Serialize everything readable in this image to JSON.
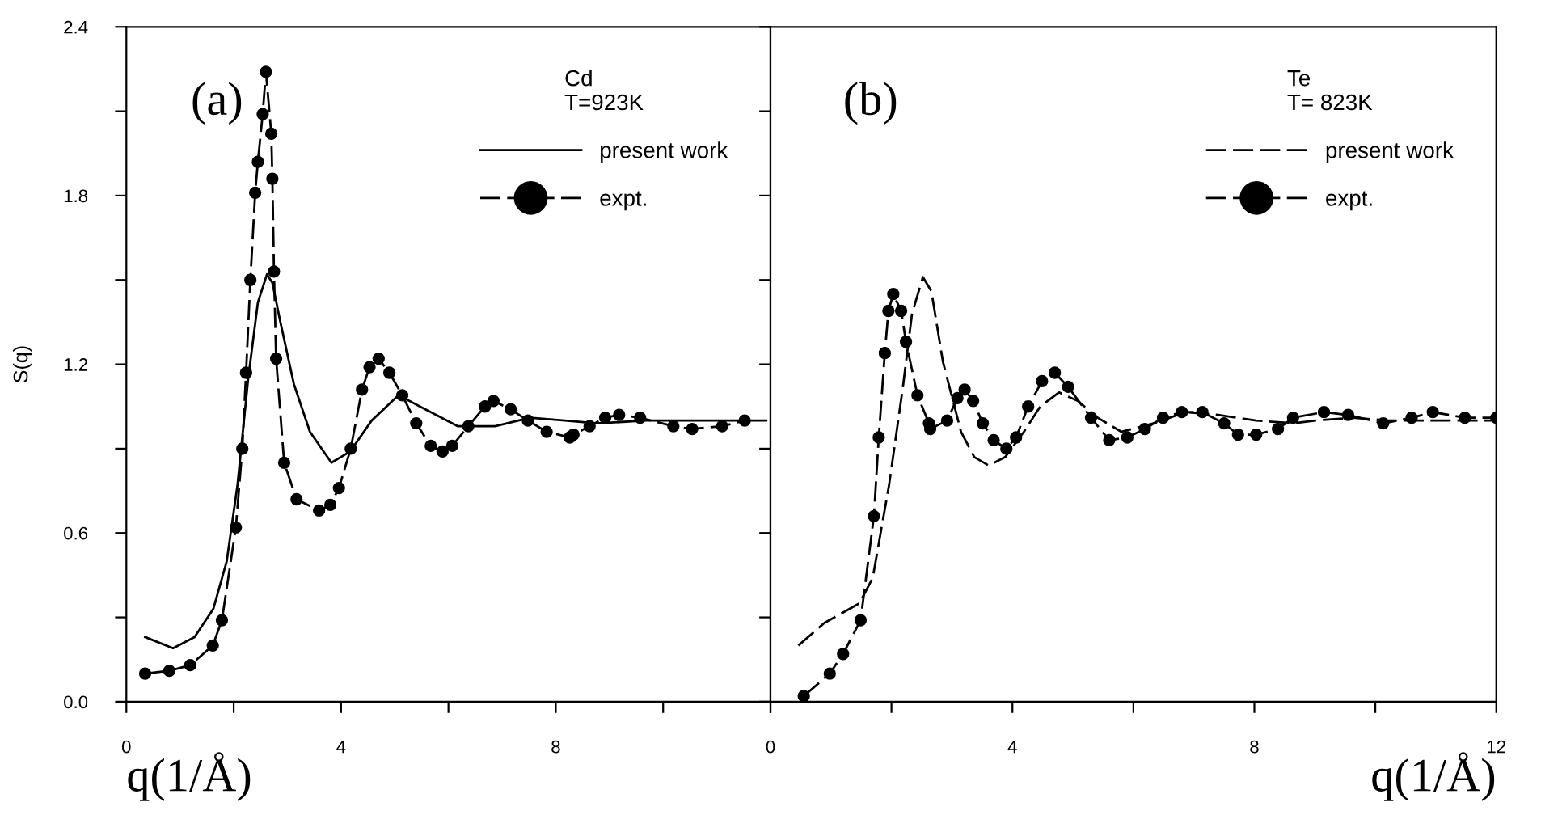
{
  "chart_data": [
    {
      "type": "line",
      "xlabel": "q(1/Å)",
      "ylabel": "S(q)",
      "legend_title": "Cd\nT=923K",
      "annotations": [
        "(a)"
      ],
      "legend": "top right",
      "xlim": [
        0,
        12
      ],
      "xticks": [
        0,
        {
          "value": 2,
          "label": null
        },
        4,
        {
          "value": 6,
          "label": null
        },
        8,
        {
          "value": 10,
          "label": null
        },
        {
          "value": 12,
          "label": null
        }
      ],
      "ylim": [
        0,
        2.4
      ],
      "yticks": [
        {
          "value": 0,
          "label": "0.0"
        },
        {
          "value": 0.3,
          "label": null
        },
        0.6,
        {
          "value": 0.9,
          "label": null
        },
        1.2,
        {
          "value": 1.5,
          "label": null
        },
        1.8,
        {
          "value": 2.1,
          "label": null
        },
        2.4
      ],
      "series": [
        {
          "name": "present work",
          "color": "#000000",
          "marker": "none",
          "line_style": "solid",
          "x": [
            0.35,
            0.87,
            1.27,
            1.62,
            1.87,
            2.07,
            2.27,
            2.45,
            2.62,
            2.72,
            2.87,
            3.12,
            3.42,
            3.82,
            4.17,
            4.57,
            5.07,
            5.57,
            6.17,
            6.87,
            7.52,
            8.17,
            8.77,
            9.67,
            11.92
          ],
          "values": [
            0.23,
            0.19,
            0.23,
            0.33,
            0.5,
            0.77,
            1.15,
            1.42,
            1.52,
            1.49,
            1.35,
            1.13,
            0.96,
            0.85,
            0.89,
            1.0,
            1.09,
            1.04,
            0.98,
            0.98,
            1.01,
            1.0,
            0.99,
            1.0,
            1.0
          ]
        },
        {
          "name": "expt.",
          "color": "#000000",
          "marker": "circle",
          "line_style": "dashed",
          "x": [
            0.35,
            0.8,
            1.19,
            1.61,
            1.78,
            2.04,
            2.16,
            2.23,
            2.31,
            2.4,
            2.45,
            2.54,
            2.6,
            2.7,
            2.72,
            2.75,
            2.79,
            2.94,
            3.17,
            3.59,
            3.8,
            3.96,
            4.18,
            4.39,
            4.53,
            4.7,
            4.9,
            5.14,
            5.4,
            5.67,
            5.89,
            6.07,
            6.37,
            6.68,
            6.84,
            7.16,
            7.48,
            7.83,
            8.26,
            8.33,
            8.63,
            8.92,
            9.18,
            9.57,
            10.19,
            10.54,
            11.1,
            11.52
          ],
          "values": [
            0.1,
            0.11,
            0.13,
            0.2,
            0.29,
            0.62,
            0.9,
            1.17,
            1.5,
            1.81,
            1.92,
            2.09,
            2.24,
            2.02,
            1.86,
            1.53,
            1.22,
            0.85,
            0.72,
            0.68,
            0.7,
            0.76,
            0.9,
            1.11,
            1.19,
            1.22,
            1.17,
            1.09,
            0.99,
            0.91,
            0.89,
            0.91,
            0.98,
            1.05,
            1.07,
            1.04,
            1.0,
            0.96,
            0.94,
            0.95,
            0.98,
            1.01,
            1.02,
            1.01,
            0.98,
            0.97,
            0.98,
            1.0
          ]
        }
      ]
    },
    {
      "type": "line",
      "xlabel": "q(1/Å)",
      "legend_title": "Te\nT= 823K",
      "annotations": [
        "(b)"
      ],
      "legend": "top right",
      "tick_labels": "x",
      "xlim": [
        0,
        12
      ],
      "xticks": [
        0,
        {
          "value": 2,
          "label": null
        },
        4,
        {
          "value": 6,
          "label": null
        },
        8,
        {
          "value": 10,
          "label": null
        },
        12
      ],
      "ylim": [
        0,
        2.4
      ],
      "yticks": [
        {
          "value": 0,
          "label": null
        },
        {
          "value": 0.3,
          "label": null
        },
        {
          "value": 0.6,
          "label": null
        },
        {
          "value": 0.9,
          "label": null
        },
        {
          "value": 1.2,
          "label": null
        },
        {
          "value": 1.5,
          "label": null
        },
        {
          "value": 1.8,
          "label": null
        },
        {
          "value": 2.1,
          "label": null
        },
        {
          "value": 2.4,
          "label": null
        }
      ],
      "series": [
        {
          "name": "present work",
          "color": "#000000",
          "marker": "none",
          "line_style": "dashed",
          "x": [
            0.46,
            0.89,
            1.47,
            1.69,
            1.96,
            2.19,
            2.34,
            2.52,
            2.66,
            2.85,
            3.15,
            3.37,
            3.61,
            3.88,
            4.19,
            4.46,
            4.77,
            5.08,
            5.41,
            5.8,
            6.33,
            6.87,
            7.4,
            8.03,
            8.65,
            9.01,
            9.63,
            10.21,
            10.53,
            12.0
          ],
          "values": [
            0.2,
            0.28,
            0.35,
            0.44,
            0.77,
            1.12,
            1.38,
            1.51,
            1.46,
            1.21,
            0.96,
            0.87,
            0.84,
            0.87,
            0.96,
            1.05,
            1.1,
            1.07,
            1.01,
            0.96,
            0.99,
            1.03,
            1.02,
            1.0,
            0.99,
            1.0,
            1.01,
            1.0,
            1.0,
            1.0
          ]
        },
        {
          "name": "expt.",
          "color": "#000000",
          "marker": "circle",
          "line_style": "dashed",
          "x": [
            0.55,
            0.98,
            1.2,
            1.49,
            1.71,
            1.79,
            1.89,
            1.95,
            2.03,
            2.16,
            2.24,
            2.43,
            2.62,
            2.64,
            2.92,
            3.09,
            3.21,
            3.35,
            3.51,
            3.69,
            3.9,
            4.06,
            4.26,
            4.49,
            4.7,
            4.92,
            5.3,
            5.6,
            5.9,
            6.19,
            6.49,
            6.8,
            7.14,
            7.5,
            7.73,
            8.03,
            8.39,
            8.64,
            9.15,
            9.55,
            10.13,
            10.6,
            10.95,
            11.48,
            12.0
          ],
          "values": [
            0.02,
            0.1,
            0.17,
            0.29,
            0.66,
            0.94,
            1.24,
            1.39,
            1.45,
            1.39,
            1.28,
            1.09,
            0.99,
            0.97,
            1.0,
            1.08,
            1.11,
            1.07,
            0.99,
            0.93,
            0.9,
            0.94,
            1.05,
            1.14,
            1.17,
            1.12,
            1.01,
            0.93,
            0.94,
            0.97,
            1.01,
            1.03,
            1.03,
            0.99,
            0.95,
            0.95,
            0.97,
            1.01,
            1.03,
            1.02,
            0.99,
            1.01,
            1.03,
            1.01,
            1.01
          ]
        }
      ]
    }
  ]
}
